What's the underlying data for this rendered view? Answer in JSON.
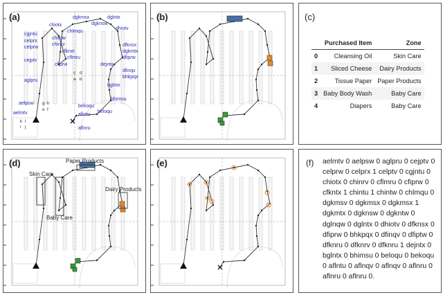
{
  "panels": {
    "a": {
      "label": "(a)"
    },
    "b": {
      "label": "(b)"
    },
    "c": {
      "label": "(c)"
    },
    "d": {
      "label": "(d)"
    },
    "e": {
      "label": "(e)"
    },
    "f": {
      "label": "(f)"
    }
  },
  "panel_a_labels": [
    "dgkmsx",
    "dglntx",
    "dgknsw",
    "chiotx",
    "chlmqu",
    "chintw",
    "chinrv",
    "cgjntu",
    "celprx",
    "celprw",
    "cfknxt",
    "cflmru",
    "cfiprw",
    "cejptv",
    "dhiotv",
    "dfknsx",
    "dgkmtx",
    "dfiprw",
    "dejntx",
    "dfinqv",
    "bhkpqx",
    "aglpru",
    "bglntx",
    "bhimsu",
    "aelpsw",
    "aelmtv",
    "bekoqu",
    "beloqu",
    "afintu",
    "aflnru"
  ],
  "panel_a_grid_letters": [
    "c",
    "d",
    "a",
    "b",
    "g",
    "h",
    "e",
    "f",
    "k",
    "l",
    "i",
    "j"
  ],
  "panel_d_zones": [
    "Paper Products",
    "Skin Care",
    "Baby Care",
    "Dairy Products"
  ],
  "table": {
    "headers": [
      "",
      "Purchased Item",
      "Zone"
    ],
    "rows": [
      [
        "0",
        "Cleansing Oil",
        "Skin Care"
      ],
      [
        "1",
        "Sliced Cheese",
        "Dairy Products"
      ],
      [
        "2",
        "Tissue Paper",
        "Paper Products"
      ],
      [
        "3",
        "Baby Body Wash",
        "Baby Care"
      ],
      [
        "4",
        "Diapers",
        "Baby Care"
      ]
    ]
  },
  "sequence_text": "aelmtv 0 aelpsw 0 aglpru 0 cejptv 0 celprw 0 celprx 1 celptv 0 cgjntu 0 chiotx 0 chinrv 0 cflmru 0 cfiprw 0 cfkntx 1 chintu 1 chintw 0 chlmqu 0 dgkmsv 0 dgkmsx 0 dgkmsx 1 dgkmtx 0 dgknsw 0 dgkntw 0 dglnqw 0 dglntx 0 dhiotv 0 dfknsx 0 dfiprw 0 bhkpqx 0 dfinqv 0 dfiptw 0 dfknru 0 dfknrv 0 dfknru 1 dejntx 0 bglntx 0 bhimsu 0 beloqu 0 bekoqu 0 aflntu 0 aflnqv 0 aflnqv 0 aflnru 0 aflnru 0 aflnru 0.",
  "colors": {
    "label_blue": "#2a2ab8",
    "paper": "#4a6fa5",
    "dairy": "#e08a2a",
    "baby": "#3a9a3a",
    "path": "#333333"
  }
}
